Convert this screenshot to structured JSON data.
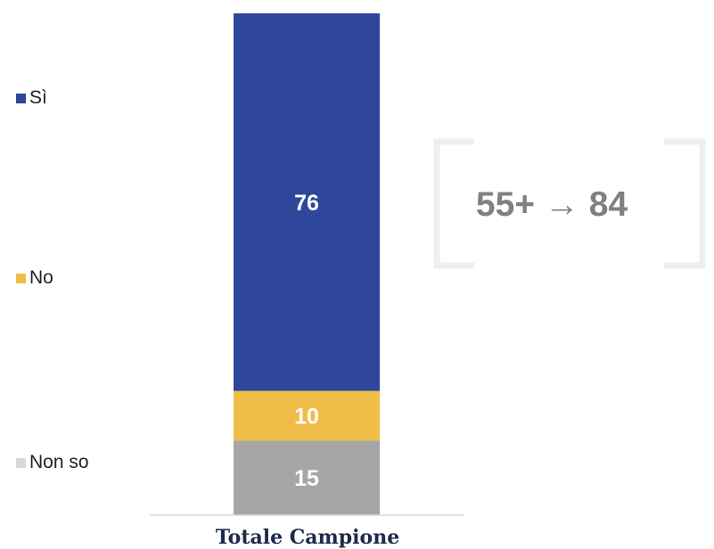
{
  "chart_data": {
    "type": "bar",
    "stacked": true,
    "categories": [
      "Totale Campione"
    ],
    "series": [
      {
        "name": "Sì",
        "values": [
          76
        ],
        "color": "#2e479a"
      },
      {
        "name": "No",
        "values": [
          10
        ],
        "color": "#f0bd49"
      },
      {
        "name": "Non so",
        "values": [
          15
        ],
        "color": "#a6a6a6"
      }
    ],
    "legend_position": "left",
    "grid": false
  },
  "annotation": {
    "text": "55+ → 84",
    "color": "#808080"
  }
}
